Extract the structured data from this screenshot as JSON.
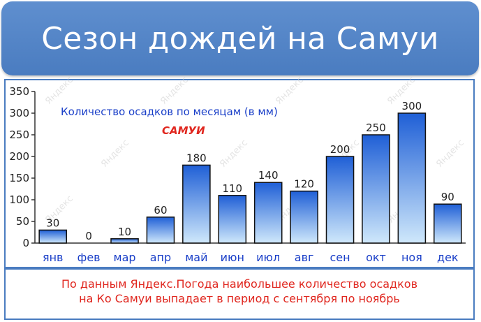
{
  "title": "Сезон дождей на Самуи",
  "chart_data": {
    "type": "bar",
    "title": "Количество осадков по месяцам (в мм)",
    "subtitle": "САМУИ",
    "categories": [
      "янв",
      "фев",
      "мар",
      "апр",
      "май",
      "июн",
      "июл",
      "авг",
      "сен",
      "окт",
      "ноя",
      "дек"
    ],
    "values": [
      30,
      0,
      10,
      60,
      180,
      110,
      140,
      120,
      200,
      250,
      300,
      90
    ],
    "ylim": [
      0,
      350
    ],
    "yticks": [
      0,
      50,
      100,
      150,
      200,
      250,
      300,
      350
    ],
    "xlabel": "",
    "ylabel": "",
    "grid": false,
    "data_labels": true,
    "watermark": "Яндекс"
  },
  "colors": {
    "banner": "#4a7cc0",
    "bar_top": "#1f5fd6",
    "bar_bottom": "#cfe8fb",
    "title_text": "#1a3fc8",
    "subtitle_text": "#e0261e",
    "category_text": "#1a3fc8",
    "footer_text": "#e0261e"
  },
  "footer": {
    "line1": "По данным Яндекс.Погода наибольшее количество осадков",
    "line2": "на Ко Самуи выпадает в период с сентября по ноябрь"
  }
}
